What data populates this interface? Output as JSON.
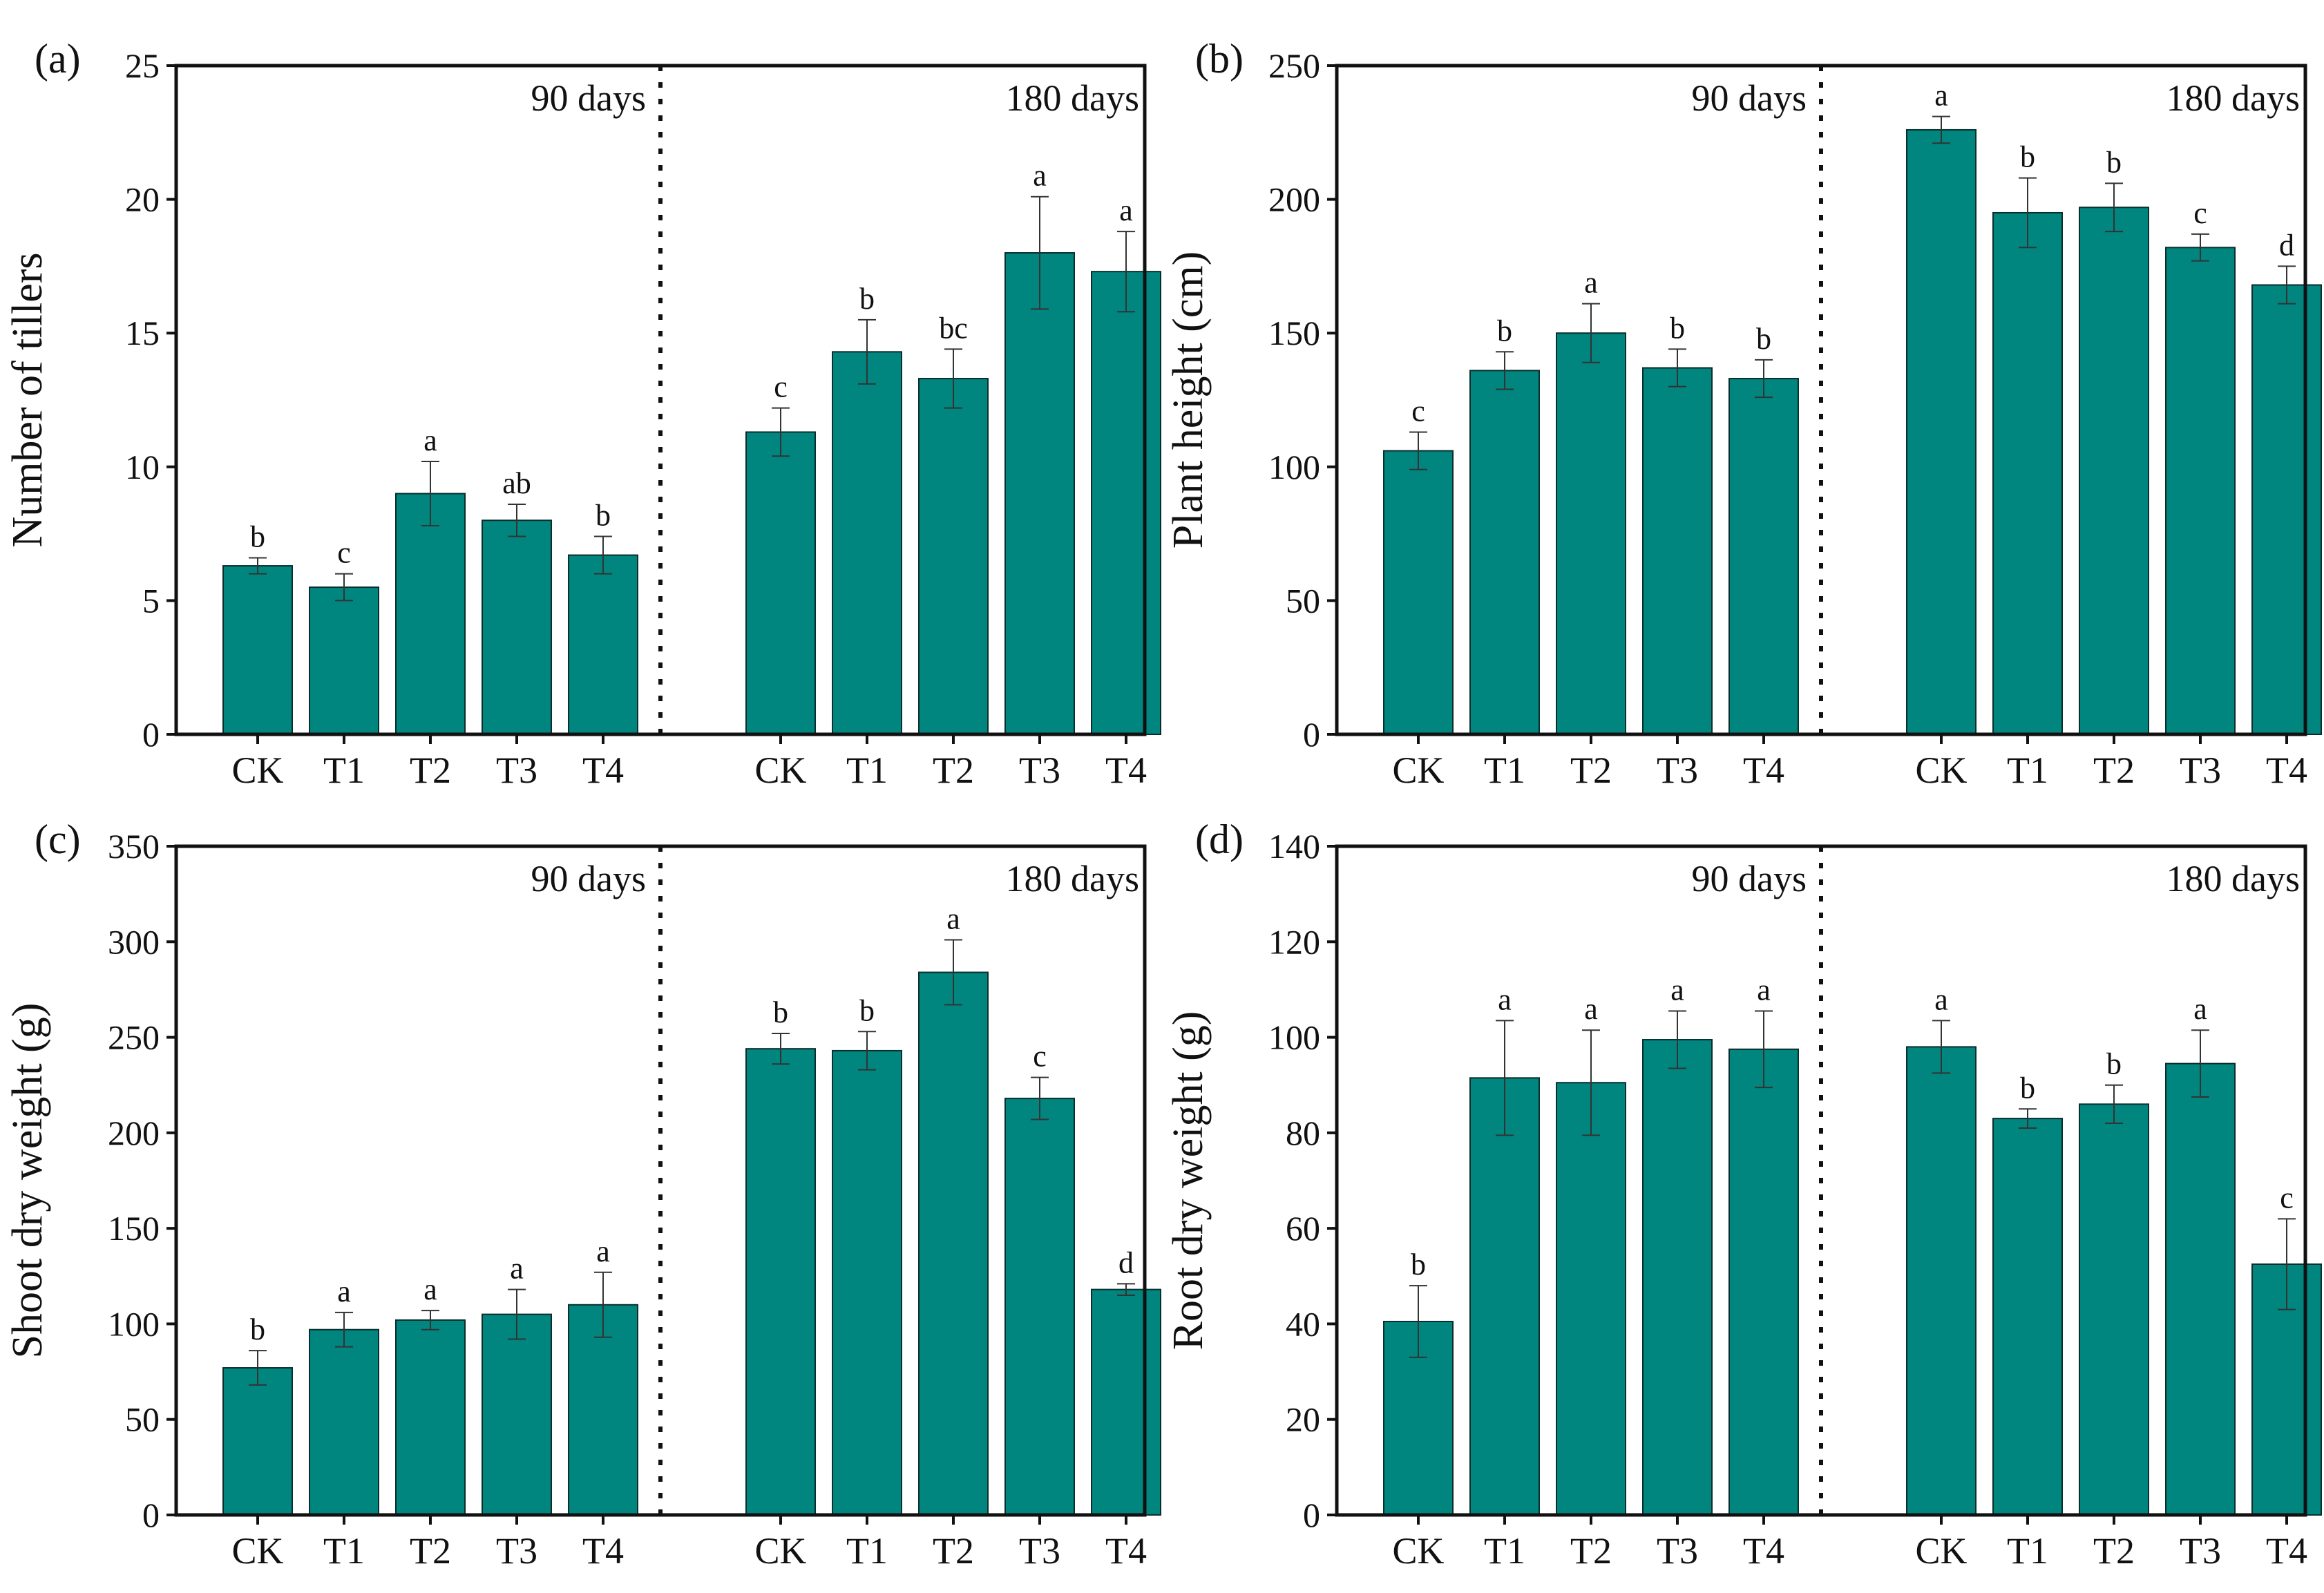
{
  "colors": {
    "bar": "#01857f",
    "bar_edge": "#0a2e2c",
    "axis": "#111111",
    "error_bar": "#333333"
  },
  "chart_data": [
    {
      "type": "bar",
      "panel": "(a)",
      "ylabel": "Number of tillers",
      "ylim": [
        0,
        25
      ],
      "yticks": [
        "0",
        "5",
        "10",
        "15",
        "20",
        "25"
      ],
      "groups": [
        {
          "label": "90 days",
          "categories": [
            "CK",
            "T1",
            "T2",
            "T3",
            "T4"
          ],
          "values": [
            6.3,
            5.5,
            9.0,
            8.0,
            6.7
          ],
          "errors": [
            0.3,
            0.5,
            1.2,
            0.6,
            0.7
          ],
          "letters": [
            "b",
            "c",
            "a",
            "ab",
            "b"
          ]
        },
        {
          "label": "180 days",
          "categories": [
            "CK",
            "T1",
            "T2",
            "T3",
            "T4"
          ],
          "values": [
            11.3,
            14.3,
            13.3,
            18.0,
            17.3
          ],
          "errors": [
            0.9,
            1.2,
            1.1,
            2.1,
            1.5
          ],
          "letters": [
            "c",
            "b",
            "bc",
            "a",
            "a"
          ]
        }
      ]
    },
    {
      "type": "bar",
      "panel": "(b)",
      "ylabel": "Plant height (cm)",
      "ylim": [
        0,
        250
      ],
      "yticks": [
        "0",
        "50",
        "100",
        "150",
        "200",
        "250"
      ],
      "groups": [
        {
          "label": "90 days",
          "categories": [
            "CK",
            "T1",
            "T2",
            "T3",
            "T4"
          ],
          "values": [
            106,
            136,
            150,
            137,
            133
          ],
          "errors": [
            7,
            7,
            11,
            7,
            7
          ],
          "letters": [
            "c",
            "b",
            "a",
            "b",
            "b"
          ]
        },
        {
          "label": "180 days",
          "categories": [
            "CK",
            "T1",
            "T2",
            "T3",
            "T4"
          ],
          "values": [
            226,
            195,
            197,
            182,
            168
          ],
          "errors": [
            5,
            13,
            9,
            5,
            7
          ],
          "letters": [
            "a",
            "b",
            "b",
            "c",
            "d"
          ]
        }
      ]
    },
    {
      "type": "bar",
      "panel": "(c)",
      "ylabel": "Shoot dry weight (g)",
      "ylim": [
        0,
        350
      ],
      "yticks": [
        "0",
        "50",
        "100",
        "150",
        "200",
        "250",
        "300",
        "350"
      ],
      "groups": [
        {
          "label": "90 days",
          "categories": [
            "CK",
            "T1",
            "T2",
            "T3",
            "T4"
          ],
          "values": [
            77,
            97,
            102,
            105,
            110
          ],
          "errors": [
            9,
            9,
            5,
            13,
            17
          ],
          "letters": [
            "b",
            "a",
            "a",
            "a",
            "a"
          ]
        },
        {
          "label": "180 days",
          "categories": [
            "CK",
            "T1",
            "T2",
            "T3",
            "T4"
          ],
          "values": [
            244,
            243,
            284,
            218,
            118
          ],
          "errors": [
            8,
            10,
            17,
            11,
            3
          ],
          "letters": [
            "b",
            "b",
            "a",
            "c",
            "d"
          ]
        }
      ]
    },
    {
      "type": "bar",
      "panel": "(d)",
      "ylabel": "Root dry weight (g)",
      "ylim": [
        0,
        140
      ],
      "yticks": [
        "0",
        "20",
        "40",
        "60",
        "80",
        "100",
        "120",
        "140"
      ],
      "groups": [
        {
          "label": "90 days",
          "categories": [
            "CK",
            "T1",
            "T2",
            "T3",
            "T4"
          ],
          "values": [
            40.5,
            91.5,
            90.5,
            99.5,
            97.5
          ],
          "errors": [
            7.5,
            12,
            11,
            6,
            8
          ],
          "letters": [
            "b",
            "a",
            "a",
            "a",
            "a"
          ]
        },
        {
          "label": "180 days",
          "categories": [
            "CK",
            "T1",
            "T2",
            "T3",
            "T4"
          ],
          "values": [
            98,
            83,
            86,
            94.5,
            52.5
          ],
          "errors": [
            5.5,
            2,
            4,
            7,
            9.5
          ],
          "letters": [
            "a",
            "b",
            "b",
            "a",
            "c"
          ]
        }
      ]
    }
  ]
}
